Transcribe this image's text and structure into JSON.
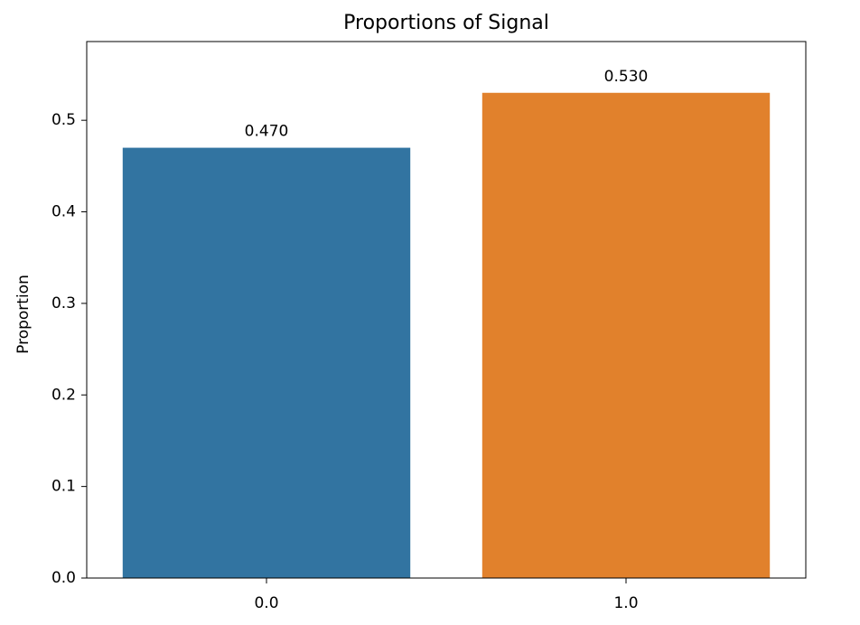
{
  "chart_data": {
    "type": "bar",
    "title": "Proportions of Signal",
    "y_label": "Proportion",
    "categories": [
      "0.0",
      "1.0"
    ],
    "values": [
      0.47,
      0.53
    ],
    "value_labels": [
      "0.470",
      "0.530"
    ],
    "colors": [
      "#3274a1",
      "#e1812c"
    ],
    "ylim": [
      0,
      0.586
    ],
    "yticks": [
      {
        "value": 0,
        "label": "0.0"
      },
      0.1,
      0.2,
      0.3,
      0.4,
      0.5
    ],
    "grid": false
  }
}
